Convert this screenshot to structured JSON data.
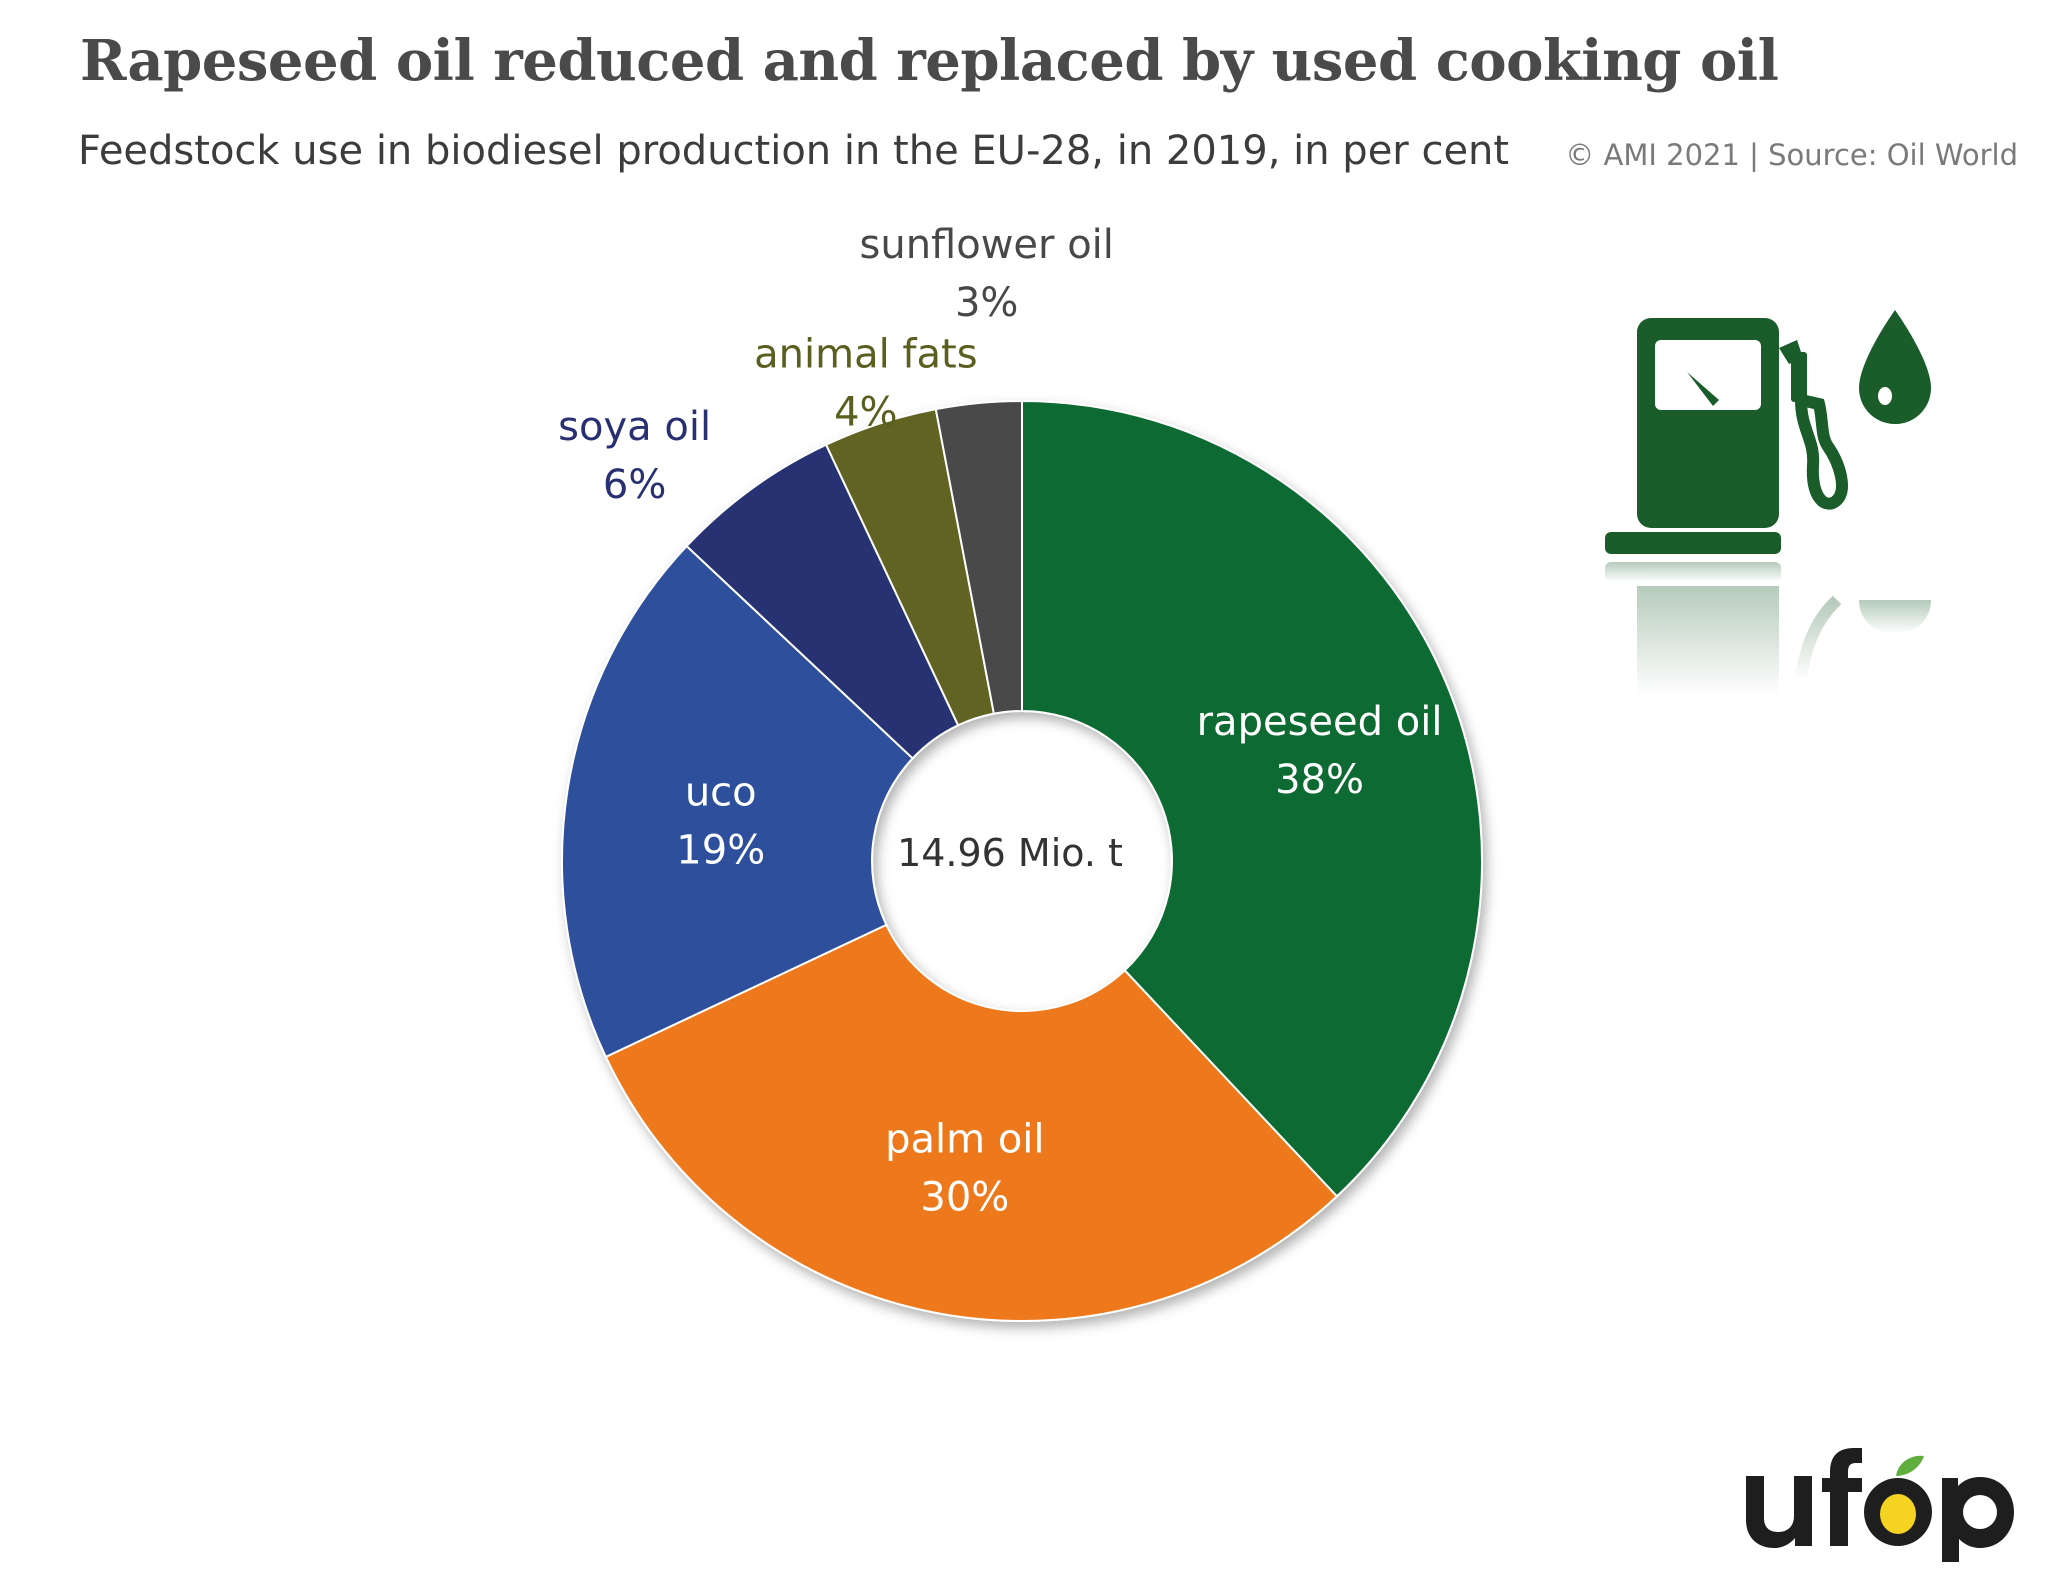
{
  "title": "Rapeseed oil reduced and replaced by used cooking oil",
  "subtitle": "Feedstock use in biodiesel production in the EU-28, in 2019, in per cent",
  "source": "© AMI 2021 | Source: Oil World",
  "logo_text": "ufop",
  "icons": [
    "fuel-pump-icon",
    "oil-drop-icon"
  ],
  "chart_data": {
    "type": "donut",
    "title": "Rapeseed oil reduced and replaced by used cooking oil",
    "subtitle": "Feedstock use in biodiesel production in the EU-28, in 2019, in per cent",
    "center_label": "14.96 Mio. t",
    "unit": "%",
    "slices": [
      {
        "label": "rapeseed oil",
        "value": 38,
        "value_label": "38%",
        "color": "#0e6a33",
        "text_color": "#ffffff"
      },
      {
        "label": "palm oil",
        "value": 30,
        "value_label": "30%",
        "color": "#ee781b",
        "text_color": "#ffffff"
      },
      {
        "label": "uco",
        "value": 19,
        "value_label": "19%",
        "color": "#2e4f9c",
        "text_color": "#ffffff"
      },
      {
        "label": "soya oil",
        "value": 6,
        "value_label": "6%",
        "color": "#283072",
        "text_color": "#283072"
      },
      {
        "label": "animal fats",
        "value": 4,
        "value_label": "4%",
        "color": "#606323",
        "text_color": "#5a5e1e"
      },
      {
        "label": "sunflower oil",
        "value": 3,
        "value_label": "3%",
        "color": "#484848",
        "text_color": "#484848"
      }
    ]
  },
  "colors": {
    "pump_green": "#1a5c2a",
    "title_gray": "#4a4a4a",
    "logo_dark": "#1e1e1e",
    "logo_yellow": "#f4d321",
    "logo_leaf": "#5fae3e"
  }
}
